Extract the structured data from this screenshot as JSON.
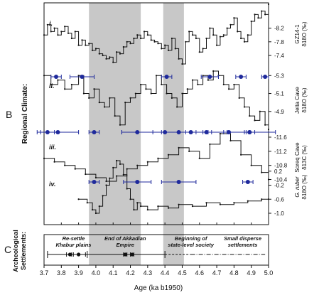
{
  "chart_data": {
    "type": "line",
    "x_axis": {
      "label": "Age (ka b1950)",
      "range": [
        3.7,
        5.0
      ],
      "reversed": false,
      "ticks": [
        "3.7",
        "3.8",
        "3.9",
        "4.0",
        "4.1",
        "4.2",
        "4.3",
        "4.4",
        "4.5",
        "4.6",
        "4.7",
        "4.8",
        "4.9",
        "5.0"
      ]
    },
    "panel_letters": {
      "regional": "B",
      "archeology": "C"
    },
    "side_labels": {
      "regional": "Regional Climate:",
      "archeology": "Archeological Settlements:"
    },
    "shaded_intervals": [
      [
        3.96,
        4.26
      ],
      [
        4.39,
        4.51
      ]
    ],
    "series": [
      {
        "name": "i.",
        "axis_title": "GZ14-1",
        "axis_unit": "δ18O (‰)",
        "ticks": [
          "-7.4",
          "-7.8",
          "-8.2"
        ],
        "tick_values": [
          -7.4,
          -7.8,
          -8.2
        ],
        "reversed": true,
        "x": [
          3.7,
          3.72,
          3.74,
          3.76,
          3.78,
          3.8,
          3.82,
          3.84,
          3.86,
          3.88,
          3.9,
          3.92,
          3.94,
          3.96,
          3.98,
          4.0,
          4.02,
          4.04,
          4.06,
          4.08,
          4.1,
          4.12,
          4.14,
          4.16,
          4.18,
          4.2,
          4.22,
          4.24,
          4.26,
          4.28,
          4.3,
          4.32,
          4.34,
          4.36,
          4.38,
          4.4,
          4.42,
          4.44,
          4.46,
          4.48,
          4.5,
          4.52,
          4.54,
          4.56,
          4.58,
          4.6,
          4.62,
          4.64,
          4.66,
          4.68,
          4.7,
          4.72,
          4.74,
          4.76,
          4.78,
          4.8,
          4.82,
          4.84,
          4.86,
          4.88,
          4.9,
          4.92,
          4.94,
          4.96,
          4.98,
          5.0
        ],
        "y": [
          -8.0,
          -8.3,
          -8.1,
          -8.2,
          -8.0,
          -8.1,
          -8.25,
          -8.05,
          -7.9,
          -8.1,
          -7.7,
          -7.85,
          -7.7,
          -7.75,
          -7.55,
          -7.6,
          -7.45,
          -7.4,
          -7.3,
          -7.35,
          -7.2,
          -7.5,
          -7.45,
          -7.65,
          -7.8,
          -7.75,
          -7.9,
          -8.0,
          -7.9,
          -8.1,
          -8.0,
          -7.85,
          -7.8,
          -7.75,
          -7.6,
          -7.7,
          -7.55,
          -7.9,
          -7.6,
          -7.3,
          -7.15,
          -7.8,
          -8.1,
          -8.0,
          -7.9,
          -7.5,
          -7.6,
          -7.9,
          -8.2,
          -8.0,
          -7.7,
          -7.95,
          -8.0,
          -8.2,
          -8.3,
          -8.5,
          -8.1,
          -7.9,
          -7.8,
          -8.0,
          -8.4,
          -8.6,
          -8.5,
          -8.7,
          -8.6,
          -8.9
        ],
        "age_controls": [
          {
            "age": 3.77,
            "err": 0.03
          },
          {
            "age": 3.92,
            "err": 0.07
          },
          {
            "age": 4.41,
            "err": 0.03
          },
          {
            "age": 4.66,
            "err": 0.05
          },
          {
            "age": 4.84,
            "err": 0.03
          },
          {
            "age": 4.98,
            "err": 0.02
          }
        ]
      },
      {
        "name": "ii.",
        "axis_title": "Jeita Cave",
        "axis_unit": "δ18O (‰)",
        "ticks": [
          "-4.9",
          "-5.1",
          "-5.3"
        ],
        "tick_values": [
          -4.9,
          -5.1,
          -5.3
        ],
        "reversed": true,
        "x": [
          3.7,
          3.74,
          3.78,
          3.82,
          3.86,
          3.9,
          3.93,
          3.96,
          3.99,
          4.02,
          4.05,
          4.08,
          4.11,
          4.14,
          4.17,
          4.2,
          4.23,
          4.26,
          4.29,
          4.32,
          4.35,
          4.38,
          4.41,
          4.44,
          4.47,
          4.5,
          4.53,
          4.56,
          4.59,
          4.62,
          4.65,
          4.68,
          4.71,
          4.74,
          4.77,
          4.8,
          4.83,
          4.86,
          4.89,
          4.92,
          4.95,
          4.98,
          5.0
        ],
        "y": [
          -5.3,
          -5.2,
          -5.25,
          -5.15,
          -5.2,
          -5.3,
          -5.1,
          -5.05,
          -5.15,
          -5.0,
          -4.95,
          -5.05,
          -4.85,
          -4.75,
          -5.0,
          -5.05,
          -5.1,
          -5.2,
          -5.15,
          -5.1,
          -5.3,
          -5.2,
          -5.1,
          -5.05,
          -4.95,
          -5.1,
          -5.15,
          -5.25,
          -5.2,
          -5.3,
          -5.25,
          -5.35,
          -5.3,
          -5.2,
          -5.15,
          -5.2,
          -5.05,
          -4.95,
          -4.85,
          -4.8,
          -4.9,
          -4.75,
          -4.7
        ],
        "age_controls": [
          {
            "age": 3.72,
            "err": 0.04
          },
          {
            "age": 3.78,
            "err": 0.12
          },
          {
            "age": 4.4,
            "err": 0.25
          },
          {
            "age": 4.55,
            "err": 0.07
          },
          {
            "age": 4.64,
            "err": 0.12
          },
          {
            "age": 4.77,
            "err": 0.1
          },
          {
            "age": 4.89,
            "err": 0.15
          }
        ]
      },
      {
        "name": "iii.",
        "axis_title": "Soreq Cave",
        "axis_unit": "δ13C (‰)",
        "ticks": [
          "-10.4",
          "-10.8",
          "-11.2",
          "-11.6"
        ],
        "tick_values": [
          -10.4,
          -10.8,
          -11.2,
          -11.6
        ],
        "reversed": true,
        "x": [
          3.7,
          3.76,
          3.82,
          3.88,
          3.94,
          4.0,
          4.06,
          4.12,
          4.18,
          4.24,
          4.3,
          4.36,
          4.42,
          4.48,
          4.54,
          4.6,
          4.66,
          4.72,
          4.78,
          4.84,
          4.9,
          4.96,
          5.0
        ],
        "y": [
          -11.0,
          -10.9,
          -10.8,
          -10.7,
          -10.55,
          -10.45,
          -10.35,
          -10.5,
          -10.7,
          -10.8,
          -10.9,
          -11.0,
          -11.1,
          -11.3,
          -11.2,
          -11.0,
          -11.4,
          -11.7,
          -11.5,
          -11.1,
          -10.8,
          -10.6,
          -10.4
        ],
        "age_controls": [
          {
            "age": 3.99,
            "err": 0.03
          },
          {
            "age": 4.24,
            "err": 0.09
          },
          {
            "age": 4.48,
            "err": 0.1
          },
          {
            "age": 4.89,
            "err": 0.03
          }
        ]
      },
      {
        "name": "iv.",
        "axis_title": "G. ruber",
        "axis_unit": "δ18O (‰)",
        "ticks": [
          "0.2",
          "-0.2",
          "-0.6",
          "-1.0"
        ],
        "tick_values": [
          0.2,
          -0.2,
          -0.6,
          -1.0
        ],
        "reversed": false,
        "x": [
          3.9,
          3.95,
          3.98,
          4.0,
          4.02,
          4.04,
          4.06,
          4.08,
          4.1,
          4.12,
          4.14,
          4.16,
          4.18,
          4.2,
          4.22,
          4.24,
          4.26,
          4.3,
          4.36,
          4.42,
          4.48,
          4.56,
          4.64,
          4.72,
          4.8,
          4.88,
          4.96,
          5.0
        ],
        "y": [
          -0.6,
          -0.7,
          -0.9,
          -1.0,
          -0.8,
          -0.5,
          -0.2,
          0.0,
          0.3,
          0.5,
          0.4,
          0.1,
          -0.3,
          -0.6,
          -0.9,
          -0.7,
          -0.8,
          -0.9,
          -0.8,
          -0.85,
          -0.75,
          -0.8,
          -0.7,
          -0.75,
          -0.7,
          -0.65,
          -0.6,
          -0.6
        ],
        "age_controls": [
          {
            "age": 3.99,
            "err": 0.03
          },
          {
            "age": 4.24,
            "err": 0.08
          },
          {
            "age": 4.48,
            "err": 0.1
          },
          {
            "age": 4.88,
            "err": 0.03
          }
        ]
      }
    ],
    "settlement_events": [
      {
        "label": "Re-settle Khabur plains",
        "age": 3.85,
        "err": 0.02,
        "lines": [
          "Re-settle",
          "Khabur plains"
        ]
      },
      {
        "label": "Re-settle Khabur plains",
        "age": 3.9,
        "err": 0.04,
        "lines": []
      },
      {
        "label": "End of Akkadian Empire",
        "age": 4.17,
        "err": 0.01,
        "lines": [
          "End of Akkadian",
          "Empire"
        ]
      },
      {
        "label": "End of Akkadian Empire",
        "age": 4.21,
        "err": 0.01,
        "lines": []
      },
      {
        "label": "Beginning of state-level society",
        "age": 4.55,
        "err": 0.0,
        "lines": [
          "Beginning of",
          "state-level society"
        ]
      },
      {
        "label": "Small disperse settlements",
        "age": 4.85,
        "err": 0.0,
        "lines": [
          "Small disperse",
          "settlements"
        ]
      }
    ],
    "settlement_line": {
      "solid_range": [
        3.72,
        4.4
      ],
      "dashed_range": [
        4.4,
        4.55
      ],
      "dashdot_range": [
        4.55,
        4.98
      ]
    },
    "colors": {
      "data": "#111111",
      "age_markers": "#1f2a9c",
      "shading": "#c8c8c8"
    }
  }
}
